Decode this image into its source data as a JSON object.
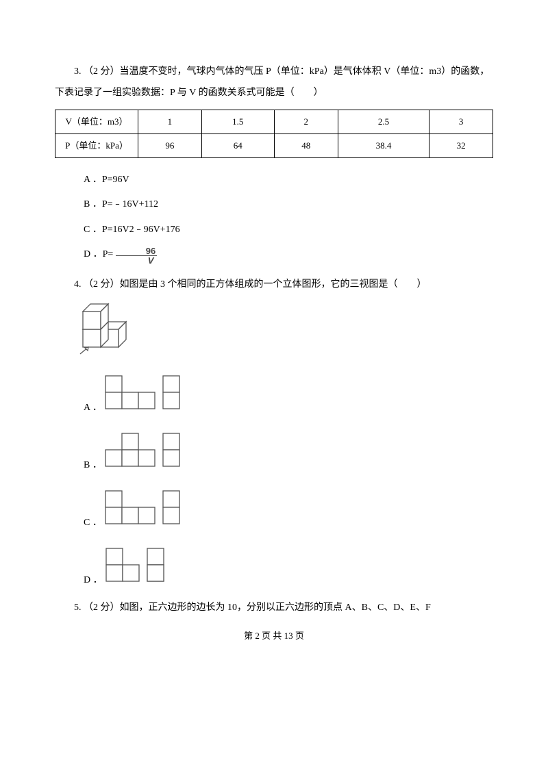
{
  "q3": {
    "prompt": "3. （2 分）当温度不变时，气球内气体的气压 P（单位：kPa）是气体体积 V（单位：m3）的函数，下表记录了一组实验数据：P 与 V 的函数关系式可能是（　　）",
    "table": {
      "header_v": "V（单位：m3）",
      "header_p": "P（单位：kPa）",
      "v": [
        "1",
        "1.5",
        "2",
        "2.5",
        "3"
      ],
      "p": [
        "96",
        "64",
        "48",
        "38.4",
        "32"
      ]
    },
    "options": {
      "a": "A ．P=96V",
      "b": "B ．P=﹣16V+112",
      "c": "C ．P=16V2﹣96V+176",
      "d_prefix": "D ．P= ",
      "d_num": "96",
      "d_den": "V"
    }
  },
  "q4": {
    "prompt": "4. （2 分）如图是由 3 个相同的正方体组成的一个立体图形，它的三视图是（　　）",
    "options": {
      "a": "A ．",
      "b": "B ．",
      "c": "C ．",
      "d": "D ．"
    },
    "svg": {
      "stroke": "#555555",
      "fill": "#ffffff",
      "sw": 1.3,
      "cell": 24,
      "cube_size": 26,
      "cube_depth": 11
    }
  },
  "q5": {
    "prompt": "5. （2 分）如图，正六边形的边长为 10，分别以正六边形的顶点 A、B、C、D、E、F"
  },
  "footer": "第 2 页 共 13 页"
}
